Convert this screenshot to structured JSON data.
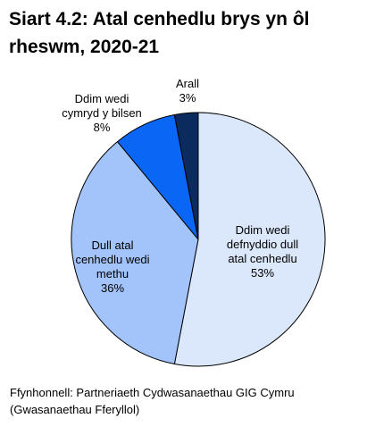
{
  "title": "Siart 4.2: Atal cenhedlu brys yn ôl rheswm, 2020-21",
  "source": "Ffynhonnell: Partneriaeth Cydwasanaethau GIG Cymru (Gwasanaethau Fferyllol)",
  "chart_data": {
    "type": "pie",
    "title": "Siart 4.2: Atal cenhedlu brys yn ôl rheswm, 2020-21",
    "start_angle_deg": 0,
    "direction": "clockwise",
    "slices": [
      {
        "label": "Ddim wedi defnyddio dull atal cenhedlu",
        "value": 53,
        "value_label": "53%",
        "color": "#dbe8fb",
        "label_lines": [
          "Ddim wedi",
          "defnyddio dull",
          "atal cenhedlu"
        ]
      },
      {
        "label": "Dull atal cenhedlu wedi methu",
        "value": 36,
        "value_label": "36%",
        "color": "#a3c4fa",
        "label_lines": [
          "Dull atal",
          "cenhedlu wedi",
          "methu"
        ]
      },
      {
        "label": "Ddim wedi cymryd y bilsen",
        "value": 8,
        "value_label": "8%",
        "color": "#0a66f5",
        "label_lines": [
          "Ddim wedi",
          "cymryd y bilsen"
        ]
      },
      {
        "label": "Arall",
        "value": 3,
        "value_label": "3%",
        "color": "#0b2a5e",
        "label_lines": [
          "Arall"
        ]
      }
    ]
  }
}
